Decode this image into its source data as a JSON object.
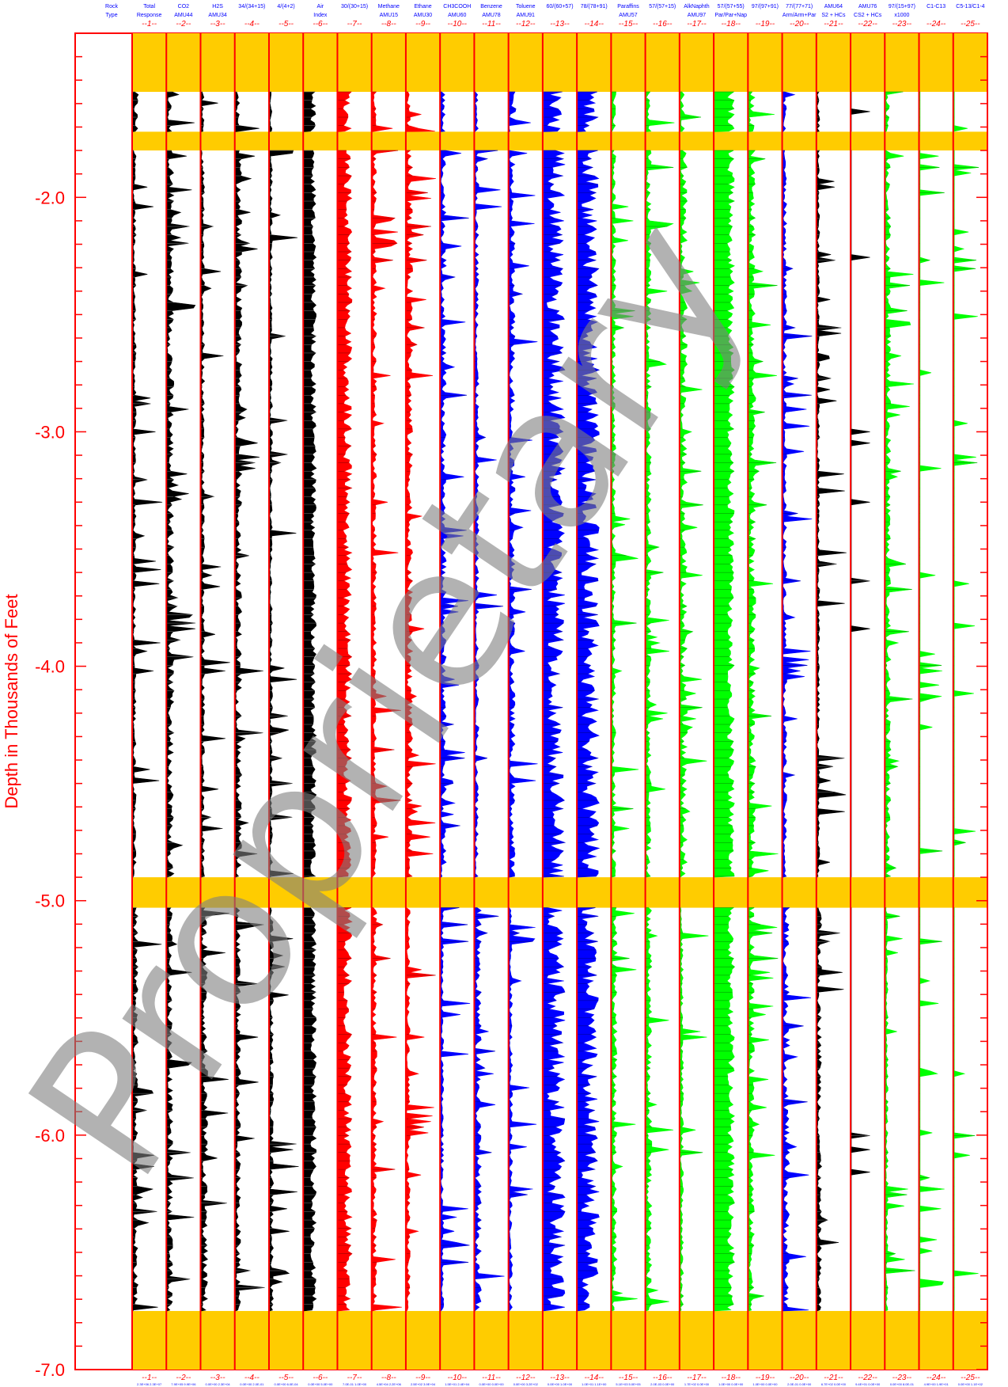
{
  "chart_data": {
    "type": "area",
    "ylabel": "Depth in Thousands of Feet",
    "ylim": [
      -1.3,
      -7.0
    ],
    "yticks": [
      "-2.0",
      "-3.0",
      "-4.0",
      "-5.0",
      "-6.0",
      "-7.0"
    ],
    "watermark": "Proprietary",
    "gap_intervals": [
      [
        -1.3,
        -1.55
      ],
      [
        -1.72,
        -1.8
      ],
      [
        -4.9,
        -5.03
      ],
      [
        -6.75,
        -7.0
      ]
    ],
    "tracks": [
      {
        "id": "--1--",
        "label1": "Total",
        "label2": "Response",
        "color": "#000000",
        "scale": "2.3E+06  2.3E+07"
      },
      {
        "id": "--2--",
        "label1": "CO2",
        "label2": "AMU44",
        "color": "#000000",
        "scale": "7.9E+05  9.9E+06"
      },
      {
        "id": "--3--",
        "label1": "H2S",
        "label2": "AMU34",
        "color": "#000000",
        "scale": "0.0E+00  2.3E+04"
      },
      {
        "id": "--4--",
        "label1": "34/(34+15)",
        "label2": "",
        "color": "#000000",
        "scale": "0.0E+00  2.0E-01"
      },
      {
        "id": "--5--",
        "label1": "4/(4+2)",
        "label2": "",
        "color": "#000000",
        "scale": "0.0E+00  6.0E-04"
      },
      {
        "id": "--6--",
        "label1": "Air",
        "label2": "Index",
        "color": "#000000",
        "scale": "0.0E+00  5.0E+00"
      },
      {
        "id": "--7--",
        "label1": "30/(30+15)",
        "label2": "",
        "color": "#ff0000",
        "scale": "7.0E-01  1.0E+00"
      },
      {
        "id": "--8--",
        "label1": "Methane",
        "label2": "AMU15",
        "color": "#ff0000",
        "scale": "4.5E+04  2.2E+06"
      },
      {
        "id": "--9--",
        "label1": "Ethane",
        "label2": "AMU30",
        "color": "#ff0000",
        "scale": "2.5E+02  3.9E+04"
      },
      {
        "id": "--10--",
        "label1": "CH3COOH",
        "label2": "AMU60",
        "color": "#0000ff",
        "scale": "1.5E+01  2.4E+04"
      },
      {
        "id": "--11--",
        "label1": "Benzene",
        "label2": "AMU78",
        "color": "#0000ff",
        "scale": "0.0E+00  0.0E+00"
      },
      {
        "id": "--12--",
        "label1": "Toluene",
        "label2": "AMU91",
        "color": "#0000ff",
        "scale": "0.0E+00  3.2E+02"
      },
      {
        "id": "--13--",
        "label1": "60/(60+57)",
        "label2": "",
        "color": "#0000ff",
        "scale": "0.0E+00  1.0E+00"
      },
      {
        "id": "--14--",
        "label1": "78/(78+91)",
        "label2": "",
        "color": "#0000ff",
        "scale": "1.0E+01  1.1E+00"
      },
      {
        "id": "--15--",
        "label1": "Paraffins",
        "label2": "AMU57",
        "color": "#00ff00",
        "scale": "5.1E+03  5.0E+05"
      },
      {
        "id": "--16--",
        "label1": "57/(57+15)",
        "label2": "",
        "color": "#00ff00",
        "scale": "2.0E-03  0.0E+00"
      },
      {
        "id": "--17--",
        "label1": "AlkNaphth",
        "label2": "AMU97",
        "color": "#00ff00",
        "scale": "1.7E+02  0.0E+00"
      },
      {
        "id": "--18--",
        "label1": "57/(57+55)",
        "label2": "Par/Par+Nap",
        "color": "#00ff00",
        "scale": "1.0E+00  0.0E+00"
      },
      {
        "id": "--19--",
        "label1": "97/(97+91)",
        "label2": "",
        "color": "#00ff00",
        "scale": "1.0E+00  0.0E+00"
      },
      {
        "id": "--20--",
        "label1": "77/(77+71)",
        "label2": "Arm/Arm+Par",
        "color": "#0000ff",
        "scale": "2.0E-01  0.0E+00"
      },
      {
        "id": "--21--",
        "label1": "AMU64",
        "label2": "S2 + HCs",
        "color": "#000000",
        "scale": "6.7E+02  0.0E+00"
      },
      {
        "id": "--22--",
        "label1": "AMU76",
        "label2": "CS2 + HCs",
        "color": "#000000",
        "scale": "9.4E+01  0.0E+00"
      },
      {
        "id": "--23--",
        "label1": "97/(15+97)",
        "label2": "x1000",
        "color": "#00ff00",
        "scale": "0.0E+00  8.0E-01"
      },
      {
        "id": "--24--",
        "label1": "C1-C13",
        "label2": "",
        "color": "#00ff00",
        "scale": "4.9E+00  1.9E+01"
      },
      {
        "id": "--25--",
        "label1": "C5-13/C1-4",
        "label2": "",
        "color": "#00ff00",
        "scale": "0.0E+00  1.1E+02"
      }
    ],
    "rock_type_label1": "Rock",
    "rock_type_label2": "Type"
  }
}
